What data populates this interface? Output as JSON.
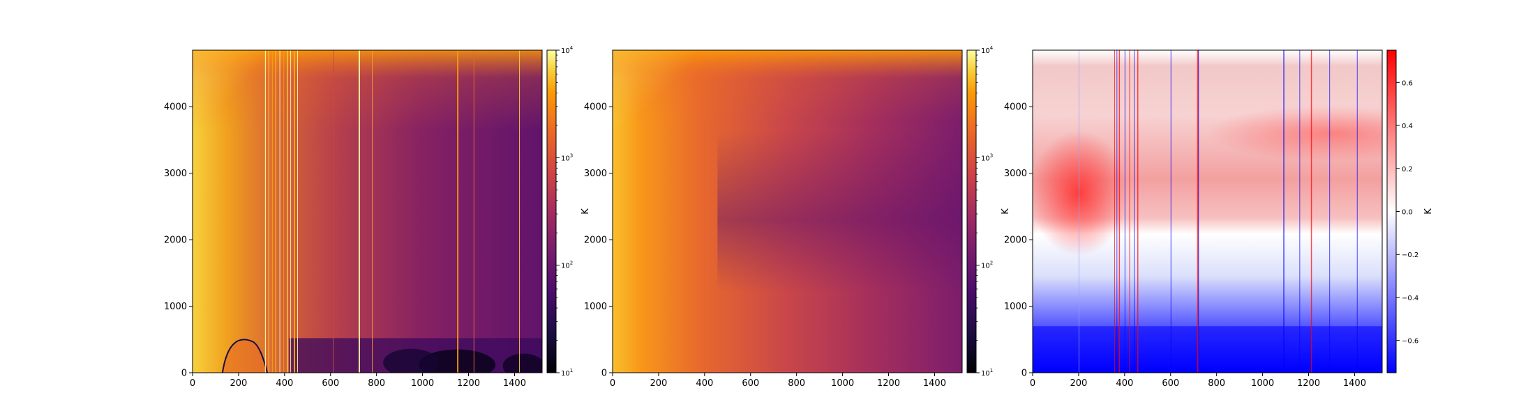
{
  "chart_data": [
    {
      "type": "heatmap",
      "title": "",
      "xlabel": "",
      "ylabel": "",
      "xlim": [
        0,
        1520
      ],
      "ylim": [
        0,
        4850
      ],
      "x_ticks": [
        "0",
        "200",
        "400",
        "600",
        "800",
        "1000",
        "1200",
        "1400"
      ],
      "x_tick_values": [
        0,
        200,
        400,
        600,
        800,
        1000,
        1200,
        1400
      ],
      "y_ticks": [
        "0",
        "1000",
        "2000",
        "3000",
        "4000"
      ],
      "y_tick_values": [
        0,
        1000,
        2000,
        3000,
        4000
      ],
      "colormap": "inferno",
      "colorbar": {
        "label": "K",
        "scale": "log",
        "range": [
          10,
          10000
        ],
        "ticks": [
          "10",
          "1",
          "10",
          "2",
          "10",
          "3",
          "10",
          "4"
        ],
        "tick_values": [
          10,
          100,
          1000,
          10000
        ]
      }
    },
    {
      "type": "heatmap",
      "title": "",
      "xlabel": "",
      "ylabel": "",
      "xlim": [
        0,
        1520
      ],
      "ylim": [
        0,
        4850
      ],
      "x_ticks": [
        "0",
        "200",
        "400",
        "600",
        "800",
        "1000",
        "1200",
        "1400"
      ],
      "x_tick_values": [
        0,
        200,
        400,
        600,
        800,
        1000,
        1200,
        1400
      ],
      "y_ticks": [
        "0",
        "1000",
        "2000",
        "3000",
        "4000"
      ],
      "y_tick_values": [
        0,
        1000,
        2000,
        3000,
        4000
      ],
      "colormap": "inferno",
      "colorbar": {
        "label": "K",
        "scale": "log",
        "range": [
          10,
          10000
        ],
        "ticks": [
          "10",
          "1",
          "10",
          "2",
          "10",
          "3",
          "10",
          "4"
        ],
        "tick_values": [
          10,
          100,
          1000,
          10000
        ]
      }
    },
    {
      "type": "heatmap",
      "title": "",
      "xlabel": "",
      "ylabel": "",
      "xlim": [
        0,
        1520
      ],
      "ylim": [
        0,
        4850
      ],
      "x_ticks": [
        "0",
        "200",
        "400",
        "600",
        "800",
        "1000",
        "1200",
        "1400"
      ],
      "x_tick_values": [
        0,
        200,
        400,
        600,
        800,
        1000,
        1200,
        1400
      ],
      "y_ticks": [
        "0",
        "1000",
        "2000",
        "3000",
        "4000"
      ],
      "y_tick_values": [
        0,
        1000,
        2000,
        3000,
        4000
      ],
      "colormap": "bwr",
      "colorbar": {
        "label": "K",
        "scale": "linear",
        "range": [
          -0.75,
          0.75
        ],
        "ticks": [
          "−0.6",
          "−0.4",
          "−0.2",
          "0.0",
          "0.2",
          "0.4",
          "0.6"
        ],
        "tick_values": [
          -0.6,
          -0.4,
          -0.2,
          0.0,
          0.2,
          0.4,
          0.6
        ]
      }
    }
  ]
}
